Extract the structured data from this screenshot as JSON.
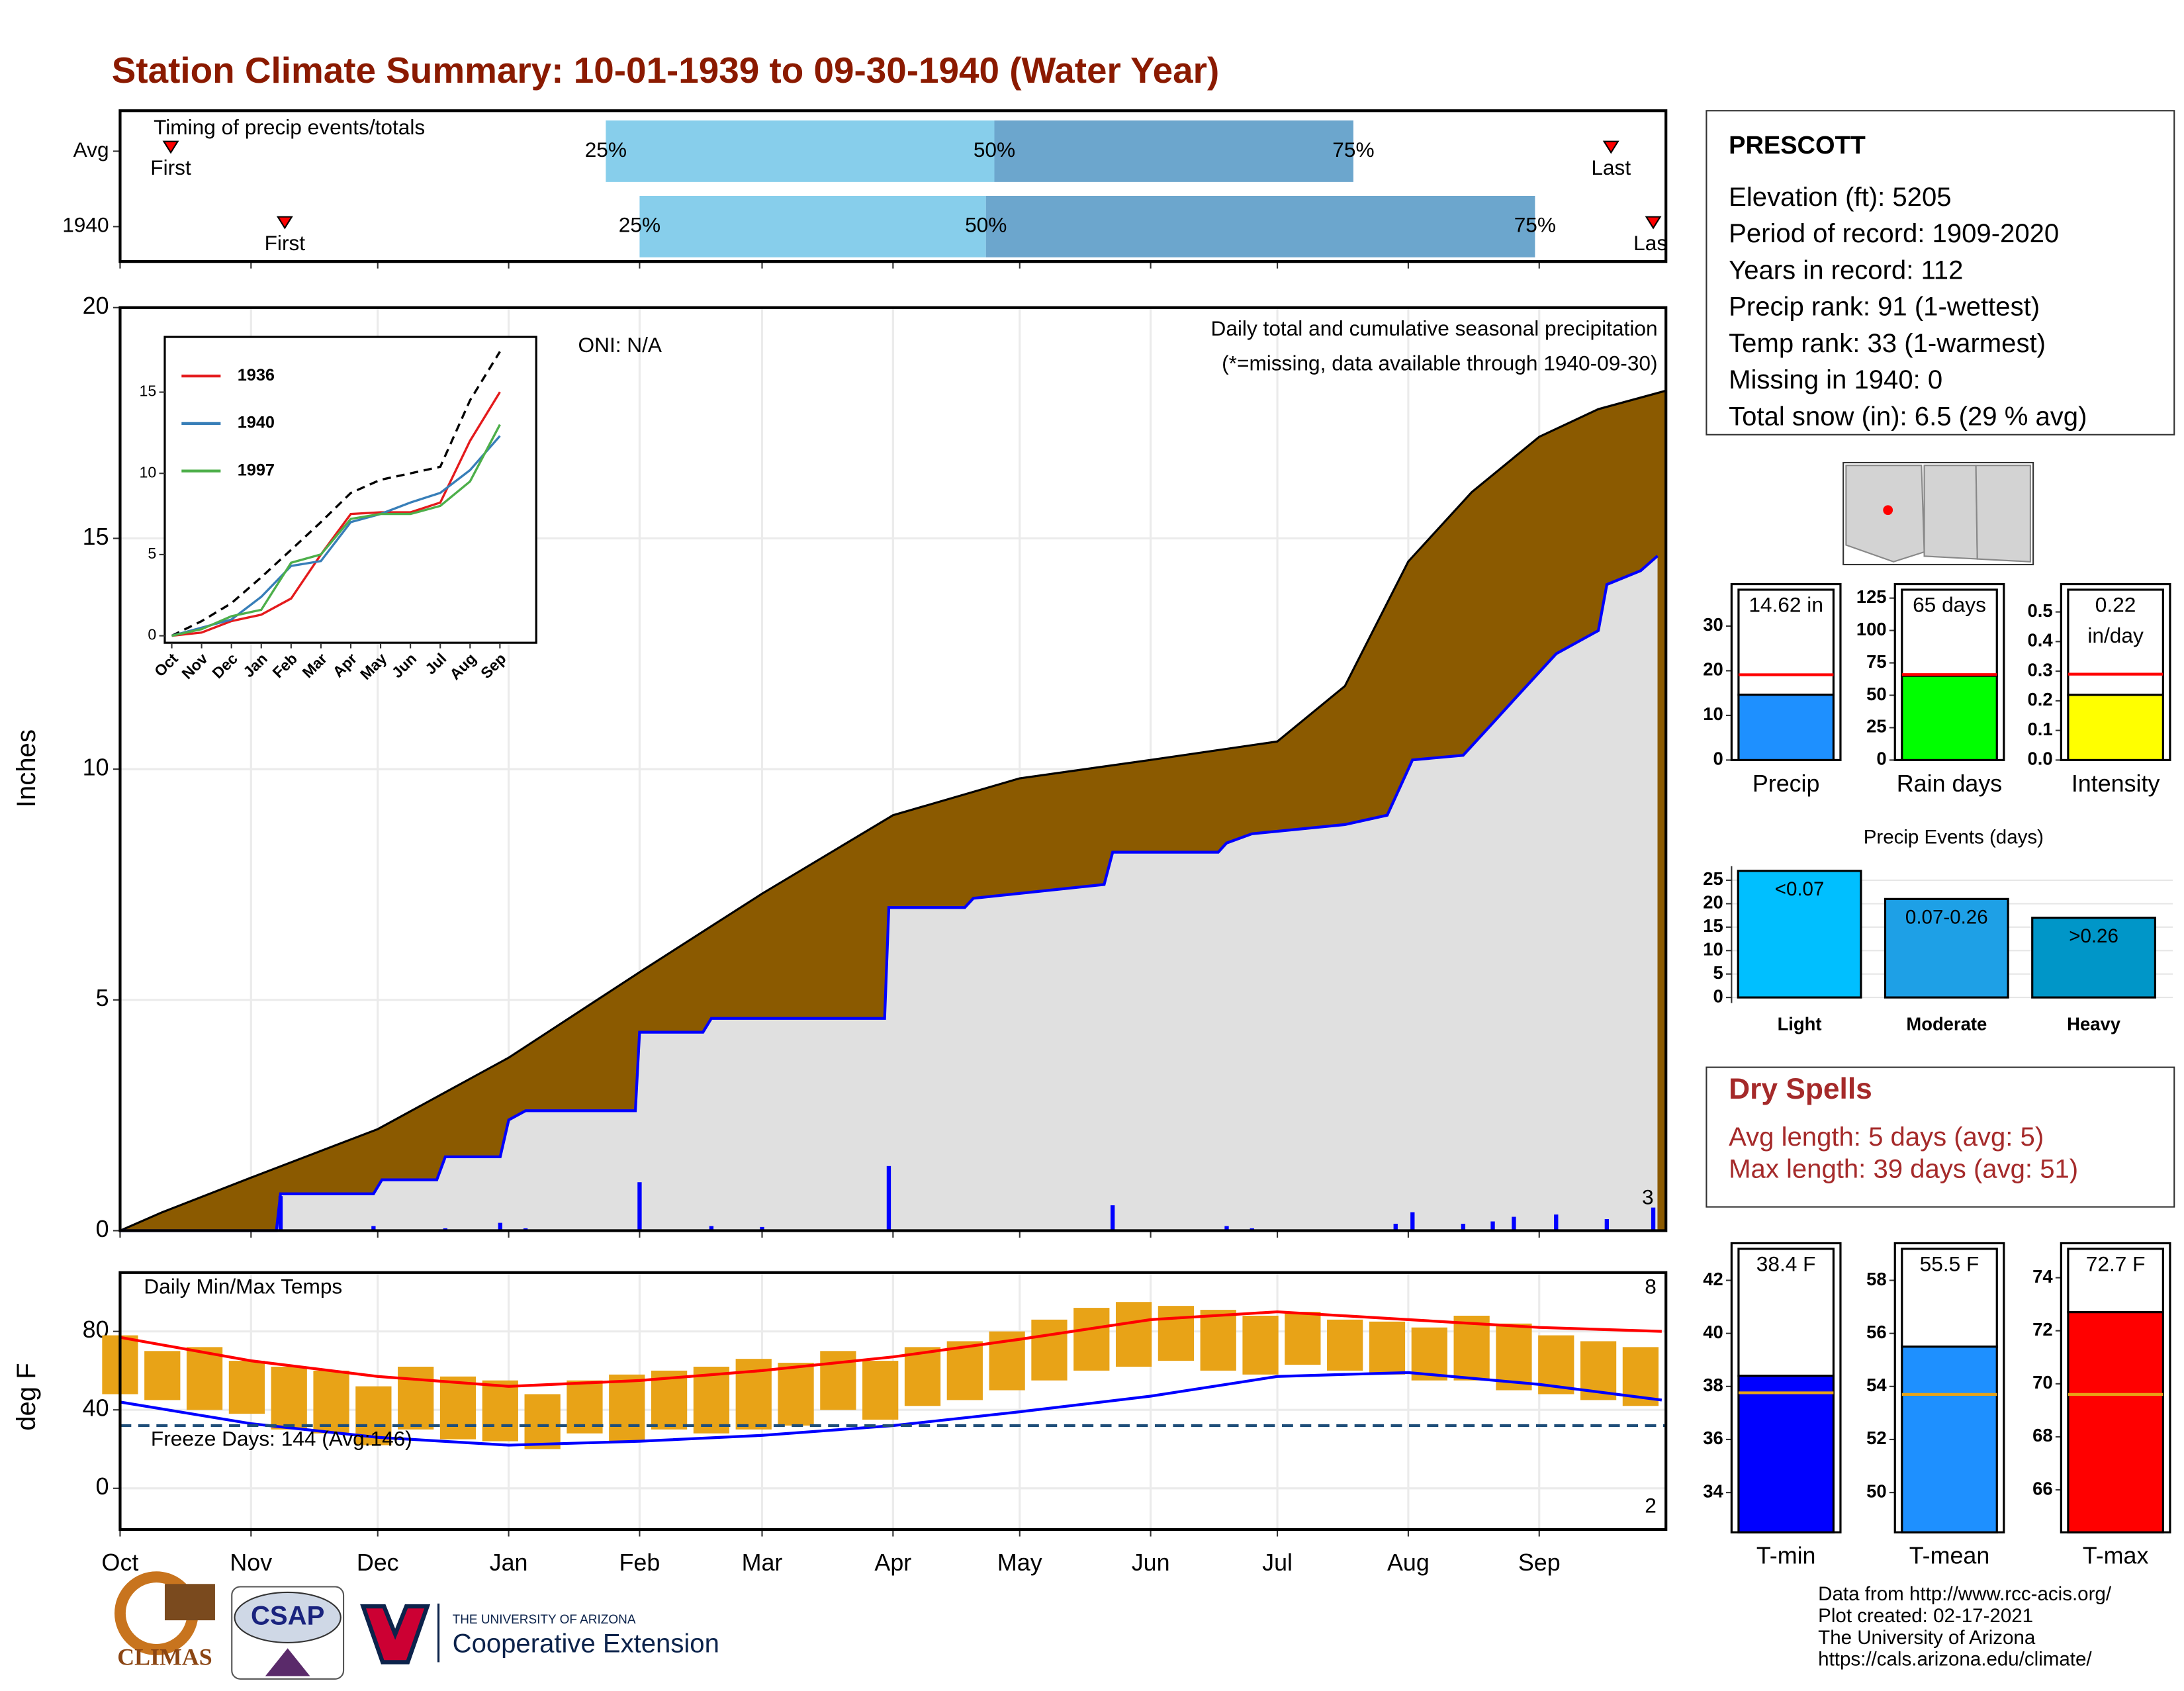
{
  "title": "Station Climate Summary: 10-01-1939 to 09-30-1940 (Water Year)",
  "station": {
    "name": "PRESCOTT",
    "lines": [
      "Elevation (ft): 5205",
      "Period of record: 1909-2020",
      "Years in record: 112",
      "Precip rank: 91 (1-wettest)",
      "Temp rank: 33 (1-warmest)",
      "Missing in 1940: 0",
      "Total snow (in): 6.5 (29 % avg)"
    ]
  },
  "dry_spells": {
    "title": "Dry Spells",
    "lines": [
      "Avg length: 5 days (avg: 5)",
      "Max length: 39 days (avg: 51)"
    ]
  },
  "footer": {
    "logos": [
      "CLIMAS",
      "CSAP",
      "THE UNIVERSITY OF ARIZONA",
      "Cooperative Extension"
    ],
    "credits": [
      "Data from http://www.rcc-acis.org/",
      "Plot created: 02-17-2021",
      "The University of Arizona",
      "https://cals.arizona.edu/climate/"
    ]
  },
  "chart_data": [
    {
      "type": "timing",
      "title": "Timing of precip events/totals",
      "categories": [
        "Avg",
        "1940"
      ],
      "xlim": [
        0,
        366
      ],
      "first": [
        12,
        39
      ],
      "q25": [
        115,
        123
      ],
      "q50": [
        207,
        205
      ],
      "q75": [
        292,
        335
      ],
      "last": [
        353,
        363
      ],
      "labels": {
        "first": "First",
        "last": "Last",
        "q25": "25%",
        "q50": "50%",
        "q75": "75%"
      },
      "colors": [
        "#87ceeb",
        "#6ca6cd"
      ],
      "marker_color": "#ff0000"
    },
    {
      "type": "cumulative",
      "y_label": "Inches",
      "xlim": [
        0,
        366
      ],
      "ylim": [
        0,
        20
      ],
      "yticks": [
        0,
        5,
        10,
        15,
        20
      ],
      "grid": true,
      "notes": [
        "ONI: N/A",
        "Daily total and cumulative seasonal precipitation"
      ],
      "missing_note": "(*=missing, data available through 1940-09-30)",
      "extreme_count": 3,
      "average": {
        "color": "#8b5a00",
        "x": [
          0,
          10,
          31,
          61,
          92,
          123,
          152,
          183,
          213,
          244,
          274,
          290,
          305,
          320,
          336,
          350,
          366
        ],
        "values": [
          0,
          0.4,
          1.15,
          2.2,
          3.75,
          5.6,
          7.3,
          9.0,
          9.8,
          10.2,
          10.6,
          11.8,
          14.5,
          16.0,
          17.2,
          17.8,
          18.2
        ]
      },
      "cumulative": {
        "color": "#0000ff",
        "fill": "#e0e0e0",
        "x": [
          0,
          37,
          38,
          60,
          62,
          75,
          77,
          90,
          92,
          96,
          122,
          123,
          138,
          140,
          181,
          182,
          200,
          202,
          233,
          235,
          260,
          262,
          268,
          290,
          300,
          306,
          318,
          325,
          330,
          340,
          350,
          352,
          360,
          364
        ],
        "values": [
          0,
          0,
          0.8,
          0.8,
          1.1,
          1.1,
          1.6,
          1.6,
          2.4,
          2.6,
          2.6,
          4.3,
          4.3,
          4.6,
          4.6,
          7.0,
          7.0,
          7.2,
          7.5,
          8.2,
          8.2,
          8.4,
          8.6,
          8.8,
          9.0,
          10.2,
          10.3,
          11.0,
          11.5,
          12.5,
          13.0,
          14.0,
          14.3,
          14.62
        ]
      },
      "daily": {
        "color": "#0000ff",
        "x": [
          38,
          60,
          77,
          90,
          96,
          123,
          140,
          152,
          182,
          235,
          262,
          268,
          302,
          306,
          318,
          325,
          330,
          340,
          352,
          363
        ],
        "values": [
          0.75,
          0.1,
          0.05,
          0.17,
          0.05,
          1.05,
          0.1,
          0.08,
          1.4,
          0.55,
          0.1,
          0.05,
          0.15,
          0.4,
          0.15,
          0.2,
          0.3,
          0.35,
          0.25,
          0.5
        ]
      }
    },
    {
      "type": "line",
      "categories": [
        "Oct",
        "Nov",
        "Dec",
        "Jan",
        "Feb",
        "Mar",
        "Apr",
        "May",
        "Jun",
        "Jul",
        "Aug",
        "Sep"
      ],
      "ylim": [
        0,
        18.4
      ],
      "yticks": [
        0,
        5,
        10,
        15
      ],
      "series": [
        {
          "color": "#000000",
          "dash": true,
          "values": [
            0,
            0.9,
            2.0,
            3.6,
            5.3,
            7.0,
            8.8,
            9.6,
            10.0,
            10.4,
            14.5,
            17.5
          ]
        },
        {
          "name": "1936",
          "color": "#e41a1c",
          "values": [
            0,
            0.2,
            0.9,
            1.3,
            2.3,
            5.0,
            7.5,
            7.6,
            7.6,
            8.2,
            12.0,
            15.0
          ]
        },
        {
          "name": "1940",
          "color": "#377eb8",
          "values": [
            0,
            0.5,
            1.0,
            2.4,
            4.3,
            4.6,
            7.0,
            7.5,
            8.2,
            8.8,
            10.2,
            12.3
          ]
        },
        {
          "name": "1997",
          "color": "#4daf4a",
          "values": [
            0,
            0.4,
            1.2,
            1.6,
            4.5,
            5.0,
            7.2,
            7.5,
            7.5,
            8.0,
            9.5,
            13.0
          ]
        }
      ]
    },
    {
      "type": "temperature",
      "title": "Daily Min/Max Temps",
      "y_label": "deg F",
      "xlim": [
        0,
        366
      ],
      "xticks": [
        {
          "value": 0,
          "label": "Oct"
        },
        {
          "value": 31,
          "label": "Nov"
        },
        {
          "value": 61,
          "label": "Dec"
        },
        {
          "value": 92,
          "label": "Jan"
        },
        {
          "value": 123,
          "label": "Feb"
        },
        {
          "value": 152,
          "label": "Mar"
        },
        {
          "value": 183,
          "label": "Apr"
        },
        {
          "value": 213,
          "label": "May"
        },
        {
          "value": 244,
          "label": "Jun"
        },
        {
          "value": 274,
          "label": "Jul"
        },
        {
          "value": 305,
          "label": "Aug"
        },
        {
          "value": 336,
          "label": "Sep"
        }
      ],
      "ylim": [
        -21,
        110
      ],
      "yticks": [
        0,
        40,
        80
      ],
      "grid": true,
      "freeze_line": 32,
      "freeze_label": "Freeze Days: 144 (Avg:146)",
      "record_high_count": 8,
      "record_low_count": 2,
      "bar_color": "#e8a317",
      "x": [
        0,
        10,
        20,
        30,
        40,
        50,
        60,
        70,
        80,
        90,
        100,
        110,
        120,
        130,
        140,
        150,
        160,
        170,
        180,
        190,
        200,
        210,
        220,
        230,
        240,
        250,
        260,
        270,
        280,
        290,
        300,
        310,
        320,
        330,
        340,
        350,
        360
      ],
      "high": [
        78,
        70,
        72,
        65,
        62,
        60,
        52,
        62,
        57,
        55,
        48,
        55,
        58,
        60,
        62,
        66,
        64,
        70,
        65,
        72,
        75,
        80,
        86,
        92,
        95,
        93,
        91,
        88,
        90,
        86,
        85,
        82,
        88,
        84,
        78,
        75,
        72
      ],
      "low": [
        48,
        45,
        40,
        38,
        30,
        28,
        22,
        30,
        25,
        24,
        20,
        28,
        24,
        30,
        28,
        30,
        32,
        40,
        35,
        42,
        45,
        50,
        55,
        60,
        62,
        65,
        60,
        58,
        63,
        60,
        58,
        55,
        55,
        50,
        48,
        45,
        42
      ],
      "avg_x": [
        0,
        31,
        61,
        92,
        123,
        152,
        183,
        213,
        244,
        274,
        305,
        336,
        365
      ],
      "avg_max": {
        "color": "#ff0000",
        "values": [
          77,
          65,
          57,
          52,
          55,
          60,
          67,
          76,
          86,
          90,
          86,
          82,
          80
        ]
      },
      "avg_min": {
        "color": "#0000ff",
        "values": [
          44,
          33,
          26,
          22,
          24,
          27,
          32,
          39,
          47,
          57,
          59,
          53,
          45
        ]
      }
    },
    {
      "type": "bar",
      "categories": [
        "Precip"
      ],
      "values": [
        14.62
      ],
      "value_labels": [
        "14.62 in"
      ],
      "average": 19.1,
      "color": "#1e90ff",
      "avg_color": "#ff0000",
      "ylim": [
        0,
        39.4
      ],
      "yticks": [
        0,
        10,
        20,
        30
      ]
    },
    {
      "type": "bar",
      "categories": [
        "Rain days"
      ],
      "values": [
        65
      ],
      "value_labels": [
        "65 days"
      ],
      "average": 66,
      "color": "#00ff00",
      "avg_color": "#ff0000",
      "ylim": [
        0,
        135.8
      ],
      "yticks": [
        0,
        25,
        50,
        75,
        100,
        125
      ]
    },
    {
      "type": "bar",
      "categories": [
        "Intensity"
      ],
      "values": [
        0.22
      ],
      "value_labels": [
        "0.22 in/day"
      ],
      "average": 0.29,
      "color": "#ffff00",
      "avg_color": "#ff0000",
      "ylim": [
        0,
        0.594
      ],
      "yticks": [
        {
          "value": 0,
          "label": "0.0"
        },
        0.1,
        0.2,
        0.3,
        0.4,
        0.5
      ]
    },
    {
      "type": "events",
      "title": "Precip Events (days)",
      "categories": [
        "Light",
        "Moderate",
        "Heavy"
      ],
      "values": [
        27,
        21,
        17
      ],
      "thresholds": [
        "<0.07",
        "0.07-0.26",
        ">0.26"
      ],
      "colors": [
        "#00bfff",
        "#1ea0e6",
        "#0096c8"
      ],
      "ylim": [
        0,
        28
      ],
      "yticks": [
        0,
        5,
        10,
        15,
        20,
        25
      ]
    },
    {
      "type": "bar",
      "categories": [
        "T-min"
      ],
      "values": [
        38.4
      ],
      "value_labels": [
        "38.4 F"
      ],
      "average": 37.76,
      "color": "#0000ff",
      "avg_color": "#e8a317",
      "ylim": [
        32.5,
        43.4
      ],
      "yticks": [
        34,
        36,
        38,
        40,
        42
      ]
    },
    {
      "type": "bar",
      "categories": [
        "T-mean"
      ],
      "values": [
        55.5
      ],
      "value_labels": [
        "55.5 F"
      ],
      "average": 53.7,
      "color": "#1e90ff",
      "avg_color": "#e8a317",
      "ylim": [
        48.5,
        59.4
      ],
      "yticks": [
        50,
        52,
        54,
        56,
        58
      ]
    },
    {
      "type": "bar",
      "categories": [
        "T-max"
      ],
      "values": [
        72.7
      ],
      "value_labels": [
        "72.7 F"
      ],
      "average": 69.6,
      "color": "#ff0000",
      "avg_color": "#e8a317",
      "ylim": [
        64.4,
        75.3
      ],
      "yticks": [
        66,
        68,
        70,
        72,
        74
      ]
    }
  ]
}
